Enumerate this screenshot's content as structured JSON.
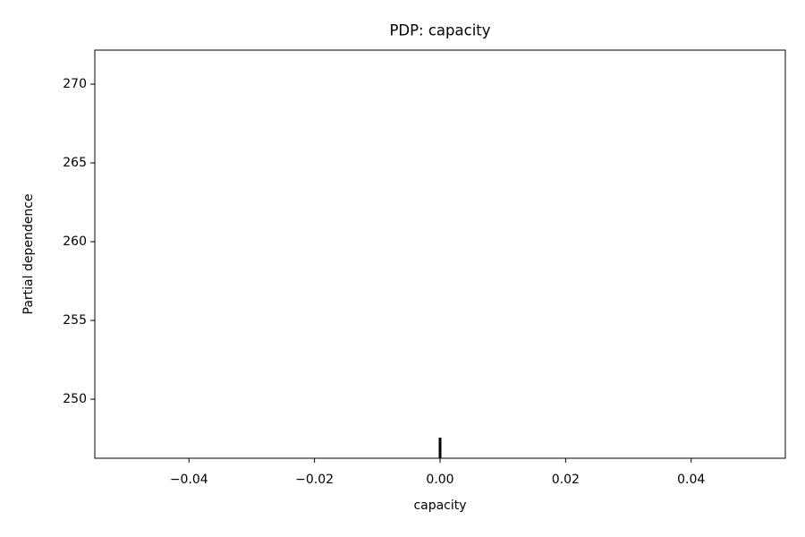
{
  "chart_data": {
    "type": "rug",
    "title": "PDP: capacity",
    "xlabel": "capacity",
    "ylabel": "Partial dependence",
    "x": [
      0
    ],
    "color": "#000000",
    "xlim": [
      -0.055,
      0.055
    ],
    "xticks": [
      {
        "value": -0.04,
        "label": "−0.04"
      },
      {
        "value": -0.02,
        "label": "−0.02"
      },
      {
        "value": 0,
        "label": "0.00"
      },
      {
        "value": 0.02,
        "label": "0.02"
      },
      {
        "value": 0.04,
        "label": "0.04"
      }
    ],
    "ylim": [
      246.25,
      272.16
    ],
    "yticks": [
      250,
      255,
      260,
      265,
      270
    ],
    "grid": false
  }
}
